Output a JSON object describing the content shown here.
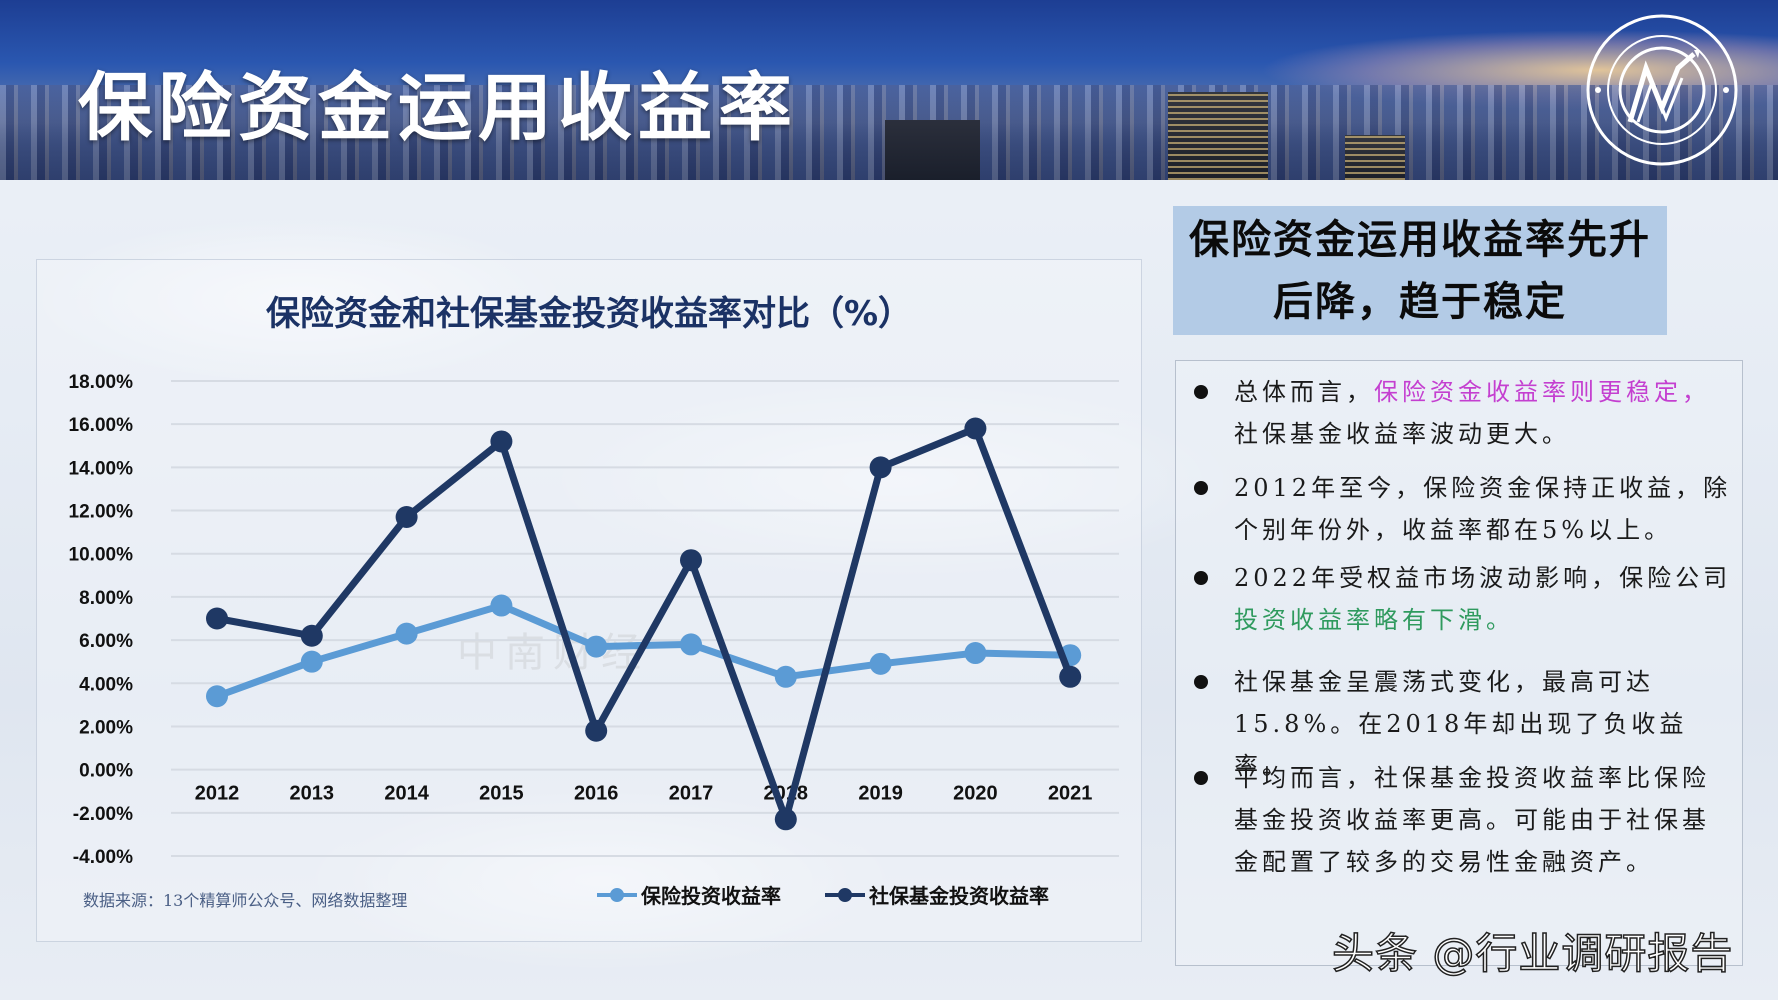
{
  "banner": {
    "title": "保险资金运用收益率",
    "logo_icon": "research-center-logo-icon"
  },
  "chart_panel": {
    "title": "保险资金和社保基金投资收益率对比（%）",
    "source_note": "数据来源：13个精算师公众号、网络数据整理",
    "watermark": "中南财经",
    "legend": [
      {
        "label": "保险投资收益率",
        "color": "#5b9bd5"
      },
      {
        "label": "社保基金投资收益率",
        "color": "#1f3864"
      }
    ]
  },
  "chart_data": {
    "type": "line",
    "title": "保险资金和社保基金投资收益率对比（%）",
    "xlabel": "",
    "ylabel": "",
    "categories": [
      "2012",
      "2013",
      "2014",
      "2015",
      "2016",
      "2017",
      "2018",
      "2019",
      "2020",
      "2021"
    ],
    "series": [
      {
        "name": "保险投资收益率",
        "color": "#5b9bd5",
        "values": [
          3.4,
          5.0,
          6.3,
          7.6,
          5.7,
          5.8,
          4.3,
          4.9,
          5.4,
          5.3
        ]
      },
      {
        "name": "社保基金投资收益率",
        "color": "#1f3864",
        "values": [
          7.0,
          6.2,
          11.7,
          15.2,
          1.8,
          9.7,
          -2.3,
          14.0,
          15.8,
          4.3
        ]
      }
    ],
    "ylim": [
      -4,
      18
    ],
    "yticks": [
      "18.00%",
      "16.00%",
      "14.00%",
      "12.00%",
      "10.00%",
      "8.00%",
      "6.00%",
      "4.00%",
      "2.00%",
      "0.00%",
      "-2.00%",
      "-4.00%"
    ],
    "grid": true,
    "legend_position": "bottom",
    "source": "数据来源：13个精算师公众号、网络数据整理"
  },
  "headline": {
    "line1": "保险资金运用收益率先升",
    "line2": "后降，趋于稳定"
  },
  "points": [
    {
      "pre": "总体而言，",
      "highlight": "保险资金收益率则更稳定，",
      "highlight_color": "#c43fd0",
      "post": "社保基金收益率波动更大。"
    },
    {
      "pre": "2012年至今，保险资金保持正收益，除个别年份外，收益率都在5%以上。",
      "highlight": "",
      "post": ""
    },
    {
      "pre": "2022年受权益市场波动影响，保险公司",
      "highlight": "投资收益率略有下滑。",
      "highlight_color": "#2f9a5e",
      "post": ""
    },
    {
      "pre": "社保基金呈震荡式变化，最高可达15.8%。在2018年却出现了负收益率。",
      "highlight": "",
      "post": ""
    },
    {
      "pre": "平均而言，社保基金投资收益率比保险基金投资收益率更高。可能由于社保基金配置了较多的交易性金融资产。",
      "highlight": "",
      "post": ""
    }
  ],
  "footer": {
    "watermark": "头条 @行业调研报告"
  }
}
